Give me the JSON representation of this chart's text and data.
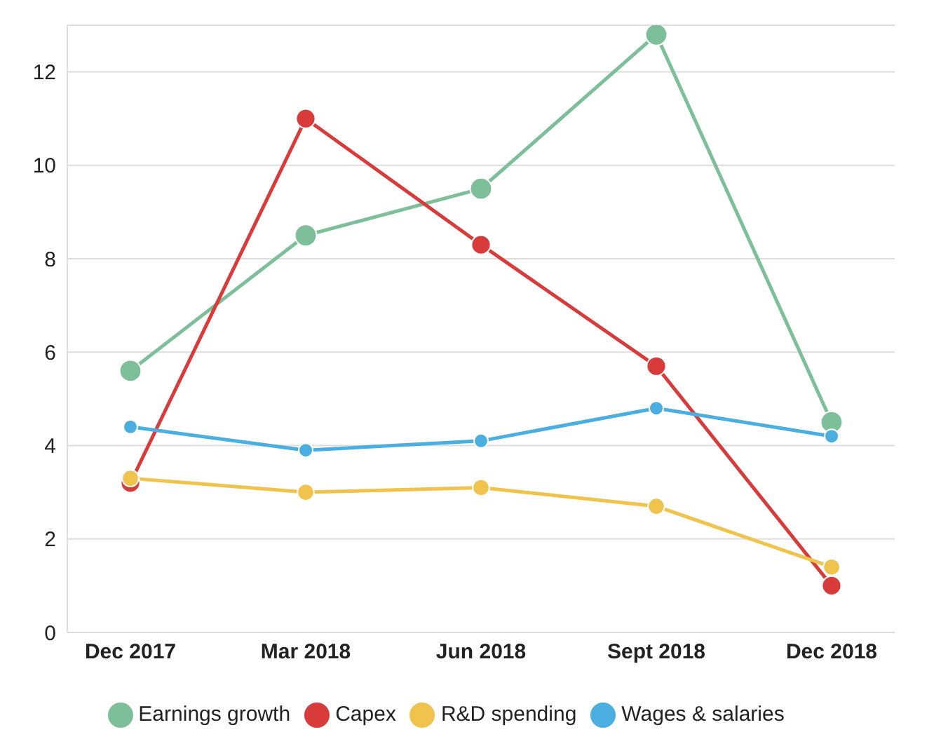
{
  "chart_data": {
    "type": "line",
    "categories": [
      "Dec 2017",
      "Mar 2018",
      "Jun 2018",
      "Sept 2018",
      "Dec 2018"
    ],
    "series": [
      {
        "name": "Earnings growth",
        "color": "#7dbf99",
        "values": [
          5.6,
          8.5,
          9.5,
          12.8,
          4.5
        ]
      },
      {
        "name": "Capex",
        "color": "#d93a3a",
        "values": [
          3.2,
          11.0,
          8.3,
          5.7,
          1.0
        ]
      },
      {
        "name": "R&D spending",
        "color": "#f0c44c",
        "values": [
          3.3,
          3.0,
          3.1,
          2.7,
          1.4
        ]
      },
      {
        "name": "Wages & salaries",
        "color": "#4aaee0",
        "values": [
          4.4,
          3.9,
          4.1,
          4.8,
          4.2
        ]
      }
    ],
    "ylim": [
      0,
      13
    ],
    "yticks": [
      0,
      2,
      4,
      6,
      8,
      10,
      12
    ],
    "grid": "y",
    "legend": "bottom",
    "marker": "circle",
    "line_style": "solid"
  }
}
